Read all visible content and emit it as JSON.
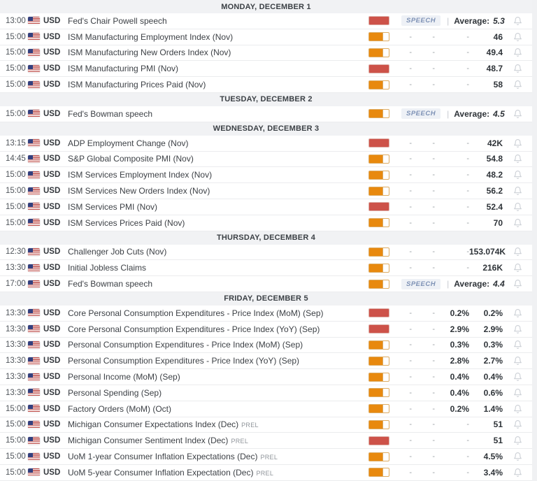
{
  "calendar": {
    "columns": {
      "actual": "-",
      "deviation": "-",
      "consensus": "-"
    },
    "colors": {
      "high_volatility": "#cd5249",
      "medium_volatility": "#e8890e",
      "speech_text": "#7d91b5",
      "speech_bg": "#eef1f6",
      "day_header_bg": "#f1f2f4"
    },
    "days": [
      {
        "label": "MONDAY, DECEMBER 1",
        "events": [
          {
            "time": "13:00",
            "currency": "USD",
            "name": "Fed's Chair Powell speech",
            "volatility": "high",
            "kind": "speech",
            "badge": "SPEECH",
            "separator": "|",
            "average_label": "Average:",
            "average_value": "5.3"
          },
          {
            "time": "15:00",
            "currency": "USD",
            "name": "ISM Manufacturing Employment Index (Nov)",
            "volatility": "medium",
            "kind": "data",
            "actual": "-",
            "deviation": "-",
            "consensus": "-",
            "previous": "46"
          },
          {
            "time": "15:00",
            "currency": "USD",
            "name": "ISM Manufacturing New Orders Index (Nov)",
            "volatility": "medium",
            "kind": "data",
            "actual": "-",
            "deviation": "-",
            "consensus": "-",
            "previous": "49.4"
          },
          {
            "time": "15:00",
            "currency": "USD",
            "name": "ISM Manufacturing PMI (Nov)",
            "volatility": "high",
            "kind": "data",
            "actual": "-",
            "deviation": "-",
            "consensus": "-",
            "previous": "48.7"
          },
          {
            "time": "15:00",
            "currency": "USD",
            "name": "ISM Manufacturing Prices Paid (Nov)",
            "volatility": "medium",
            "kind": "data",
            "actual": "-",
            "deviation": "-",
            "consensus": "-",
            "previous": "58"
          }
        ]
      },
      {
        "label": "TUESDAY, DECEMBER 2",
        "events": [
          {
            "time": "15:00",
            "currency": "USD",
            "name": "Fed's Bowman speech",
            "volatility": "medium",
            "kind": "speech",
            "badge": "SPEECH",
            "separator": "|",
            "average_label": "Average:",
            "average_value": "4.5"
          }
        ]
      },
      {
        "label": "WEDNESDAY, DECEMBER 3",
        "events": [
          {
            "time": "13:15",
            "currency": "USD",
            "name": "ADP Employment Change (Nov)",
            "volatility": "high",
            "kind": "data",
            "actual": "-",
            "deviation": "-",
            "consensus": "-",
            "previous": "42K"
          },
          {
            "time": "14:45",
            "currency": "USD",
            "name": "S&P Global Composite PMI (Nov)",
            "volatility": "medium",
            "kind": "data",
            "actual": "-",
            "deviation": "-",
            "consensus": "-",
            "previous": "54.8"
          },
          {
            "time": "15:00",
            "currency": "USD",
            "name": "ISM Services Employment Index (Nov)",
            "volatility": "medium",
            "kind": "data",
            "actual": "-",
            "deviation": "-",
            "consensus": "-",
            "previous": "48.2"
          },
          {
            "time": "15:00",
            "currency": "USD",
            "name": "ISM Services New Orders Index (Nov)",
            "volatility": "medium",
            "kind": "data",
            "actual": "-",
            "deviation": "-",
            "consensus": "-",
            "previous": "56.2"
          },
          {
            "time": "15:00",
            "currency": "USD",
            "name": "ISM Services PMI (Nov)",
            "volatility": "high",
            "kind": "data",
            "actual": "-",
            "deviation": "-",
            "consensus": "-",
            "previous": "52.4"
          },
          {
            "time": "15:00",
            "currency": "USD",
            "name": "ISM Services Prices Paid (Nov)",
            "volatility": "medium",
            "kind": "data",
            "actual": "-",
            "deviation": "-",
            "consensus": "-",
            "previous": "70"
          }
        ]
      },
      {
        "label": "THURSDAY, DECEMBER 4",
        "events": [
          {
            "time": "12:30",
            "currency": "USD",
            "name": "Challenger Job Cuts (Nov)",
            "volatility": "medium",
            "kind": "data",
            "actual": "-",
            "deviation": "-",
            "consensus": "-",
            "previous": "153.074K"
          },
          {
            "time": "13:30",
            "currency": "USD",
            "name": "Initial Jobless Claims",
            "volatility": "medium",
            "kind": "data",
            "actual": "-",
            "deviation": "-",
            "consensus": "-",
            "previous": "216K"
          },
          {
            "time": "17:00",
            "currency": "USD",
            "name": "Fed's Bowman speech",
            "volatility": "medium",
            "kind": "speech",
            "badge": "SPEECH",
            "separator": "|",
            "average_label": "Average:",
            "average_value": "4.4"
          }
        ]
      },
      {
        "label": "FRIDAY, DECEMBER 5",
        "events": [
          {
            "time": "13:30",
            "currency": "USD",
            "name": "Core Personal Consumption Expenditures - Price Index (MoM) (Sep)",
            "volatility": "high",
            "kind": "data",
            "actual": "-",
            "deviation": "-",
            "consensus": "0.2%",
            "previous": "0.2%"
          },
          {
            "time": "13:30",
            "currency": "USD",
            "name": "Core Personal Consumption Expenditures - Price Index (YoY) (Sep)",
            "volatility": "high",
            "kind": "data",
            "actual": "-",
            "deviation": "-",
            "consensus": "2.9%",
            "previous": "2.9%"
          },
          {
            "time": "13:30",
            "currency": "USD",
            "name": "Personal Consumption Expenditures - Price Index (MoM) (Sep)",
            "volatility": "medium",
            "kind": "data",
            "actual": "-",
            "deviation": "-",
            "consensus": "0.3%",
            "previous": "0.3%"
          },
          {
            "time": "13:30",
            "currency": "USD",
            "name": "Personal Consumption Expenditures - Price Index (YoY) (Sep)",
            "volatility": "medium",
            "kind": "data",
            "actual": "-",
            "deviation": "-",
            "consensus": "2.8%",
            "previous": "2.7%"
          },
          {
            "time": "13:30",
            "currency": "USD",
            "name": "Personal Income (MoM) (Sep)",
            "volatility": "medium",
            "kind": "data",
            "actual": "-",
            "deviation": "-",
            "consensus": "0.4%",
            "previous": "0.4%"
          },
          {
            "time": "13:30",
            "currency": "USD",
            "name": "Personal Spending (Sep)",
            "volatility": "medium",
            "kind": "data",
            "actual": "-",
            "deviation": "-",
            "consensus": "0.4%",
            "previous": "0.6%"
          },
          {
            "time": "15:00",
            "currency": "USD",
            "name": "Factory Orders (MoM) (Oct)",
            "volatility": "medium",
            "kind": "data",
            "actual": "-",
            "deviation": "-",
            "consensus": "0.2%",
            "previous": "1.4%"
          },
          {
            "time": "15:00",
            "currency": "USD",
            "name": "Michigan Consumer Expectations Index (Dec)",
            "tag": "PREL",
            "volatility": "medium",
            "kind": "data",
            "actual": "-",
            "deviation": "-",
            "consensus": "-",
            "previous": "51"
          },
          {
            "time": "15:00",
            "currency": "USD",
            "name": "Michigan Consumer Sentiment Index (Dec)",
            "tag": "PREL",
            "volatility": "high",
            "kind": "data",
            "actual": "-",
            "deviation": "-",
            "consensus": "-",
            "previous": "51"
          },
          {
            "time": "15:00",
            "currency": "USD",
            "name": "UoM 1-year Consumer Inflation Expectations (Dec)",
            "tag": "PREL",
            "volatility": "medium",
            "kind": "data",
            "actual": "-",
            "deviation": "-",
            "consensus": "-",
            "previous": "4.5%"
          },
          {
            "time": "15:00",
            "currency": "USD",
            "name": "UoM 5-year Consumer Inflation Expectation (Dec)",
            "tag": "PREL",
            "volatility": "medium",
            "kind": "data",
            "actual": "-",
            "deviation": "-",
            "consensus": "-",
            "previous": "3.4%"
          }
        ]
      }
    ]
  }
}
